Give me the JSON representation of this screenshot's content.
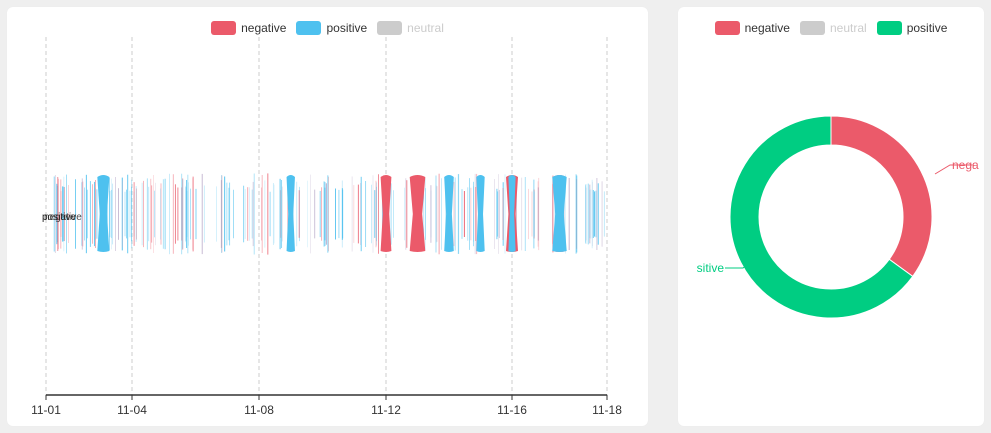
{
  "stream": {
    "legend": [
      {
        "name": "negative",
        "color": "#eb5a6a",
        "enabled": true
      },
      {
        "name": "positive",
        "color": "#4ec1ef",
        "enabled": true
      },
      {
        "name": "neutral",
        "color": "#c8c8c8",
        "enabled": false
      }
    ],
    "overlap_label_1": "positive",
    "overlap_label_2": "negative"
  },
  "donut": {
    "legend": [
      {
        "name": "negative",
        "color": "#eb5a6a",
        "enabled": true
      },
      {
        "name": "neutral",
        "color": "#c8c8c8",
        "enabled": false
      },
      {
        "name": "positive",
        "color": "#00cd82",
        "enabled": true
      }
    ],
    "label_negative": "nega",
    "label_positive": "sitive"
  },
  "chart_data": [
    {
      "type": "area",
      "subtype": "themeRiver",
      "x_ticks": [
        "11-01",
        "11-04",
        "11-08",
        "11-12",
        "11-16",
        "11-18"
      ],
      "grid": "vertical dashed",
      "series": [
        {
          "name": "negative",
          "color": "#eb5a6a",
          "points": [
            [
              "11-12",
              0.9
            ],
            [
              "11-13",
              1.3
            ],
            [
              "11-16",
              1.0
            ],
            [
              "11-17",
              1.1
            ]
          ]
        },
        {
          "name": "positive",
          "color": "#4ec1ef",
          "points": [
            [
              "11-03",
              1.0
            ],
            [
              "11-09",
              0.7
            ],
            [
              "11-14",
              0.8
            ],
            [
              "11-15",
              0.7
            ],
            [
              "11-16",
              0.6
            ],
            [
              "11-17",
              1.2
            ]
          ]
        }
      ],
      "legend_position": "top"
    },
    {
      "type": "pie",
      "donut": true,
      "slices": [
        {
          "name": "negative",
          "value": 35,
          "color": "#eb5a6a"
        },
        {
          "name": "positive",
          "value": 65,
          "color": "#00cd82"
        }
      ],
      "legend_position": "top"
    }
  ]
}
